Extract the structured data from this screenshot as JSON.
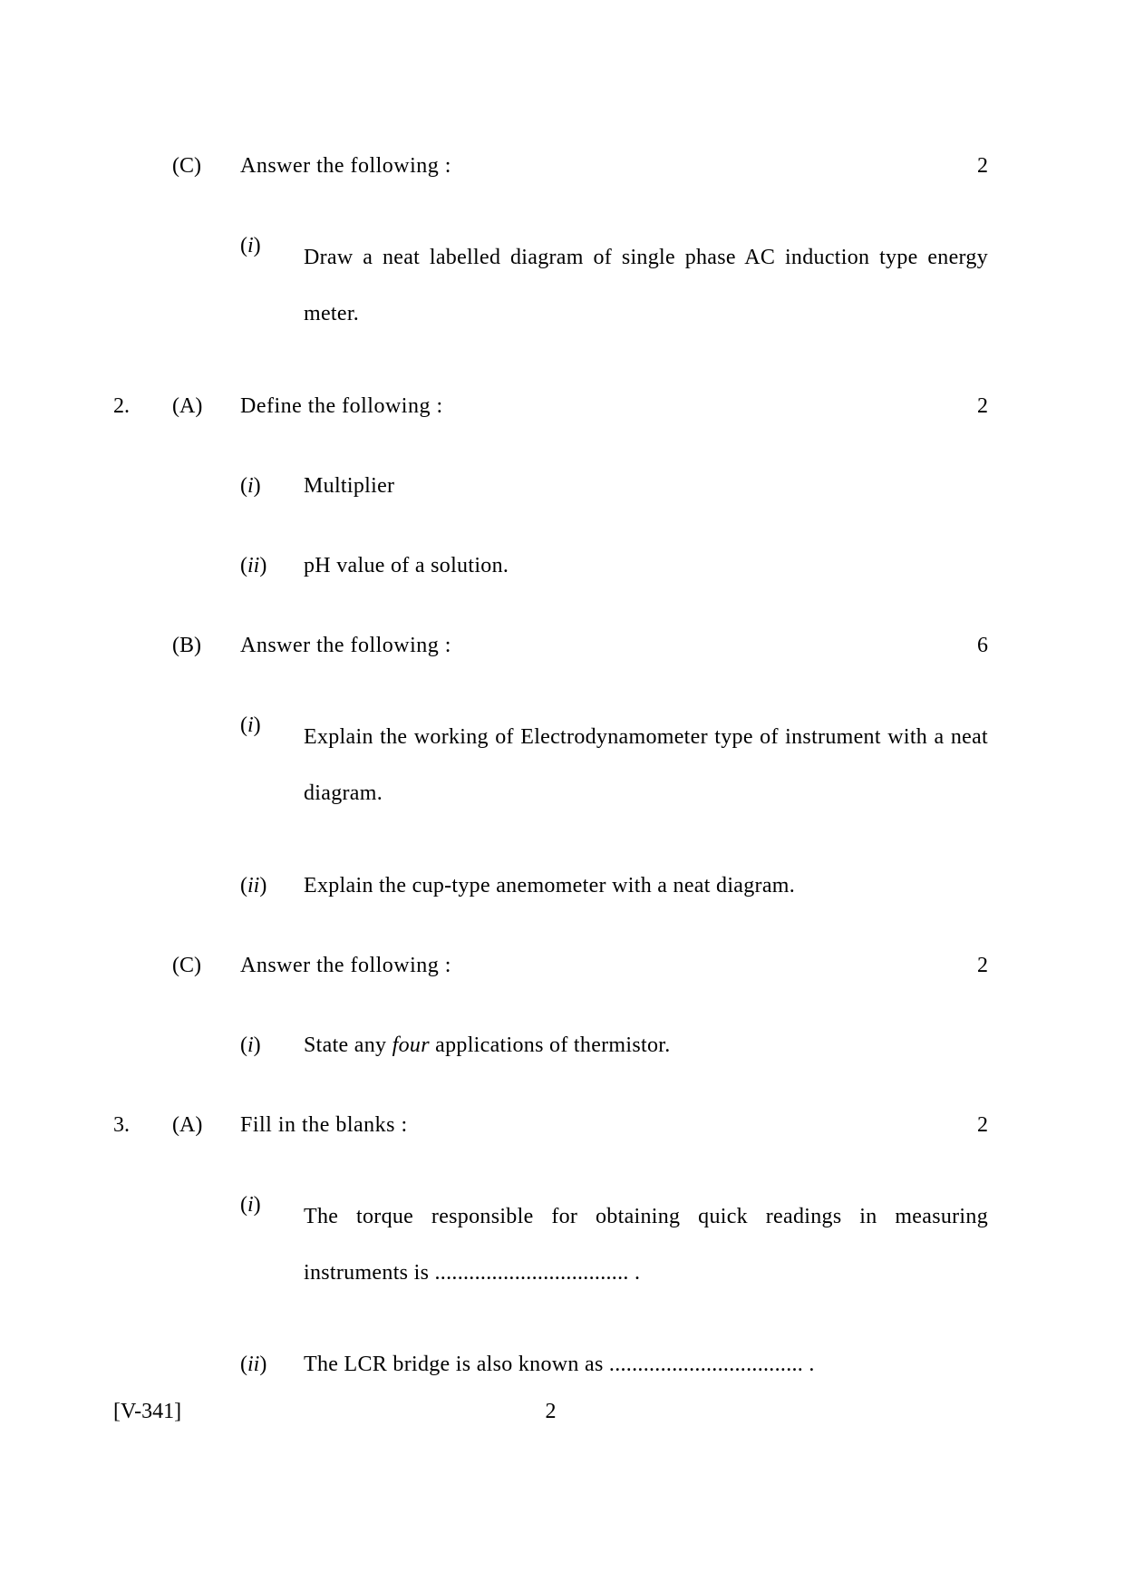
{
  "footer": {
    "code": "[V-341]",
    "page_number": "2"
  },
  "items": [
    {
      "qnum": "",
      "part": "(C)",
      "header": "Answer the following :",
      "marks": "2",
      "subs": [
        {
          "label": "i",
          "text": "Draw a neat labelled diagram of single phase AC induction type energy meter.",
          "multiline": true
        }
      ]
    },
    {
      "qnum": "2.",
      "part": "(A)",
      "header": "Define the following :",
      "marks": "2",
      "subs": [
        {
          "label": "i",
          "text": "Multiplier",
          "multiline": false
        },
        {
          "label": "ii",
          "text": "pH value of a solution.",
          "multiline": false
        }
      ]
    },
    {
      "qnum": "",
      "part": "(B)",
      "header": "Answer the following :",
      "marks": "6",
      "subs": [
        {
          "label": "i",
          "text": "Explain the working of Electrodynamometer type of instrument with a neat diagram.",
          "multiline": true
        },
        {
          "label": "ii",
          "text": "Explain the cup-type anemometer with a neat diagram.",
          "multiline": false
        }
      ]
    },
    {
      "qnum": "",
      "part": "(C)",
      "header": "Answer the following :",
      "marks": "2",
      "subs": [
        {
          "label": "i",
          "text_pre": "State any ",
          "text_italic": "four",
          "text_post": " applications of thermistor.",
          "multiline": false,
          "has_italic": true
        }
      ]
    },
    {
      "qnum": "3.",
      "part": "(A)",
      "header": "Fill in the blanks :",
      "marks": "2",
      "subs": [
        {
          "label": "i",
          "text": "The torque responsible for obtaining quick readings in measuring instruments is .................................. .",
          "multiline": true
        },
        {
          "label": "ii",
          "text": "The LCR bridge is also known as .................................. .",
          "multiline": false
        }
      ]
    }
  ]
}
